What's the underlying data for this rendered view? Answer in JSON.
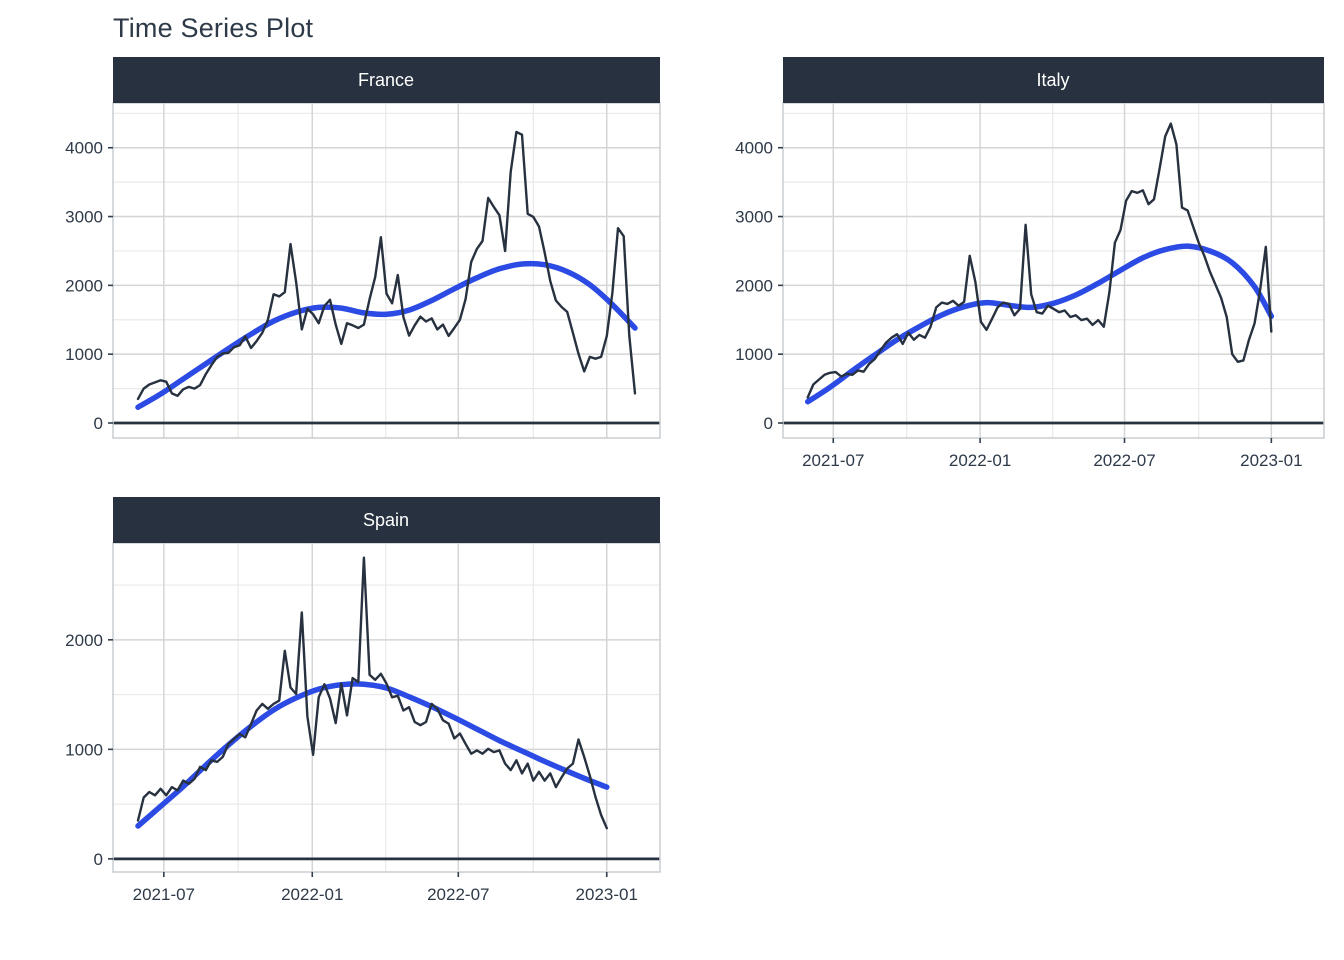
{
  "title": "Time Series Plot",
  "colors": {
    "background": "#FFFFFF",
    "title_text": "#2E3A48",
    "strip_bg": "#27313F",
    "strip_text": "#FFFFFF",
    "raw_line": "#27313F",
    "smooth_line": "#2B4BE4",
    "zero_line": "#27313F",
    "grid_major": "#D5D5D5",
    "grid_minor": "#E9E9E9",
    "panel_border": "#C9CDD1",
    "axis_text": "#2E3A48",
    "tick_mark": "#333F4D"
  },
  "chart_data": [
    {
      "type": "line",
      "facet_label": "France",
      "x_axis": {
        "domain": [
          "2021-04-29",
          "2023-03-08"
        ],
        "tick_dates": [
          "2021-07-01",
          "2022-01-01",
          "2022-07-01",
          "2023-01-01"
        ],
        "tick_labels": [
          "2021-07",
          "2022-01",
          "2022-07",
          "2023-01"
        ],
        "minor_dates": [
          "2021-10-01",
          "2022-04-02",
          "2022-10-02"
        ],
        "labels_shown": false
      },
      "y_axis": {
        "lim": [
          -218,
          4650
        ],
        "ticks": [
          0,
          1000,
          2000,
          3000,
          4000
        ],
        "minor": [
          500,
          1500,
          2500,
          3500,
          4500
        ],
        "labels_shown": true
      },
      "zero_hline": 0,
      "weekly": {
        "start_date": "2021-05-30",
        "interval_days": 7
      },
      "series": [
        {
          "name": "observed",
          "color_ref": "raw_line",
          "values": [
            350,
            500,
            560,
            590,
            620,
            600,
            430,
            395,
            490,
            525,
            500,
            550,
            710,
            840,
            960,
            1010,
            1020,
            1100,
            1130,
            1260,
            1090,
            1190,
            1310,
            1500,
            1870,
            1840,
            1900,
            2600,
            2050,
            1360,
            1660,
            1580,
            1450,
            1700,
            1790,
            1430,
            1150,
            1450,
            1420,
            1380,
            1430,
            1800,
            2120,
            2700,
            1880,
            1740,
            2150,
            1540,
            1270,
            1420,
            1545,
            1475,
            1520,
            1360,
            1430,
            1265,
            1380,
            1500,
            1800,
            2340,
            2530,
            2645,
            3270,
            3140,
            3020,
            2500,
            3650,
            4230,
            4190,
            3040,
            2995,
            2855,
            2480,
            2060,
            1780,
            1685,
            1615,
            1310,
            1005,
            750,
            960,
            935,
            960,
            1265,
            1895,
            2830,
            2715,
            1265,
            430
          ]
        },
        {
          "name": "smooth",
          "color_ref": "smooth_line",
          "week_index": [
            0,
            4,
            8,
            12,
            16,
            20,
            24,
            28,
            32,
            36,
            40,
            44,
            48,
            52,
            56,
            60,
            64,
            68,
            72,
            76,
            80,
            84,
            88
          ],
          "values": [
            230,
            420,
            640,
            860,
            1080,
            1290,
            1480,
            1610,
            1680,
            1670,
            1600,
            1580,
            1640,
            1780,
            1950,
            2110,
            2240,
            2310,
            2300,
            2200,
            2010,
            1720,
            1380
          ]
        }
      ]
    },
    {
      "type": "line",
      "facet_label": "Italy",
      "x_axis": {
        "domain": [
          "2021-04-29",
          "2023-03-08"
        ],
        "tick_dates": [
          "2021-07-01",
          "2022-01-01",
          "2022-07-01",
          "2023-01-01"
        ],
        "tick_labels": [
          "2021-07",
          "2022-01",
          "2022-07",
          "2023-01"
        ],
        "minor_dates": [
          "2021-10-01",
          "2022-04-02",
          "2022-10-02"
        ],
        "labels_shown": true
      },
      "y_axis": {
        "lim": [
          -218,
          4650
        ],
        "ticks": [
          0,
          1000,
          2000,
          3000,
          4000
        ],
        "minor": [
          500,
          1500,
          2500,
          3500,
          4500
        ],
        "labels_shown": true
      },
      "zero_hline": 0,
      "weekly": {
        "start_date": "2021-05-30",
        "interval_days": 7
      },
      "series": [
        {
          "name": "observed",
          "color_ref": "raw_line",
          "values": [
            370,
            560,
            630,
            700,
            730,
            740,
            675,
            715,
            700,
            765,
            745,
            860,
            930,
            1050,
            1165,
            1240,
            1290,
            1150,
            1310,
            1210,
            1280,
            1240,
            1400,
            1680,
            1750,
            1730,
            1775,
            1705,
            1760,
            2430,
            2055,
            1470,
            1355,
            1515,
            1680,
            1750,
            1730,
            1565,
            1660,
            2880,
            1870,
            1610,
            1590,
            1705,
            1660,
            1610,
            1635,
            1540,
            1565,
            1495,
            1515,
            1425,
            1495,
            1400,
            1900,
            2620,
            2805,
            3230,
            3370,
            3345,
            3380,
            3180,
            3250,
            3695,
            4165,
            4350,
            4050,
            3130,
            3090,
            2855,
            2620,
            2430,
            2200,
            2010,
            1820,
            1540,
            1000,
            890,
            910,
            1210,
            1450,
            1940,
            2560,
            1330
          ]
        },
        {
          "name": "smooth",
          "color_ref": "smooth_line",
          "week_index": [
            0,
            4,
            8,
            12,
            16,
            20,
            24,
            28,
            32,
            36,
            40,
            44,
            48,
            52,
            56,
            60,
            64,
            68,
            72,
            76,
            80,
            83
          ],
          "values": [
            310,
            520,
            760,
            990,
            1210,
            1400,
            1570,
            1690,
            1750,
            1710,
            1680,
            1740,
            1860,
            2030,
            2220,
            2400,
            2520,
            2570,
            2500,
            2330,
            1980,
            1550
          ]
        }
      ]
    },
    {
      "type": "line",
      "facet_label": "Spain",
      "x_axis": {
        "domain": [
          "2021-04-29",
          "2023-03-08"
        ],
        "tick_dates": [
          "2021-07-01",
          "2022-01-01",
          "2022-07-01",
          "2023-01-01"
        ],
        "tick_labels": [
          "2021-07",
          "2022-01",
          "2022-07",
          "2023-01"
        ],
        "minor_dates": [
          "2021-10-01",
          "2022-04-02",
          "2022-10-02"
        ],
        "labels_shown": true
      },
      "y_axis": {
        "lim": [
          -120,
          2884
        ],
        "ticks": [
          0,
          1000,
          2000
        ],
        "minor": [
          500,
          1500,
          2500
        ],
        "labels_shown": true
      },
      "zero_hline": 0,
      "weekly": {
        "start_date": "2021-05-30",
        "interval_days": 7
      },
      "series": [
        {
          "name": "observed",
          "color_ref": "raw_line",
          "values": [
            350,
            560,
            610,
            580,
            640,
            580,
            655,
            625,
            715,
            685,
            730,
            840,
            810,
            900,
            885,
            930,
            1050,
            1095,
            1140,
            1110,
            1230,
            1355,
            1415,
            1370,
            1415,
            1445,
            1900,
            1565,
            1505,
            2250,
            1300,
            950,
            1475,
            1595,
            1465,
            1240,
            1600,
            1310,
            1650,
            1615,
            2750,
            1680,
            1635,
            1690,
            1600,
            1475,
            1490,
            1355,
            1385,
            1250,
            1220,
            1250,
            1415,
            1370,
            1265,
            1235,
            1100,
            1145,
            1050,
            960,
            990,
            960,
            1005,
            975,
            990,
            870,
            810,
            900,
            780,
            870,
            715,
            795,
            715,
            780,
            655,
            745,
            825,
            870,
            1090,
            930,
            760,
            565,
            400,
            280
          ]
        },
        {
          "name": "smooth",
          "color_ref": "smooth_line",
          "week_index": [
            0,
            4,
            8,
            12,
            16,
            20,
            24,
            28,
            32,
            36,
            40,
            44,
            48,
            52,
            56,
            60,
            64,
            68,
            72,
            76,
            80,
            83
          ],
          "values": [
            300,
            480,
            660,
            855,
            1040,
            1210,
            1360,
            1470,
            1550,
            1590,
            1595,
            1560,
            1480,
            1390,
            1290,
            1185,
            1080,
            985,
            890,
            800,
            715,
            655
          ]
        }
      ]
    }
  ]
}
